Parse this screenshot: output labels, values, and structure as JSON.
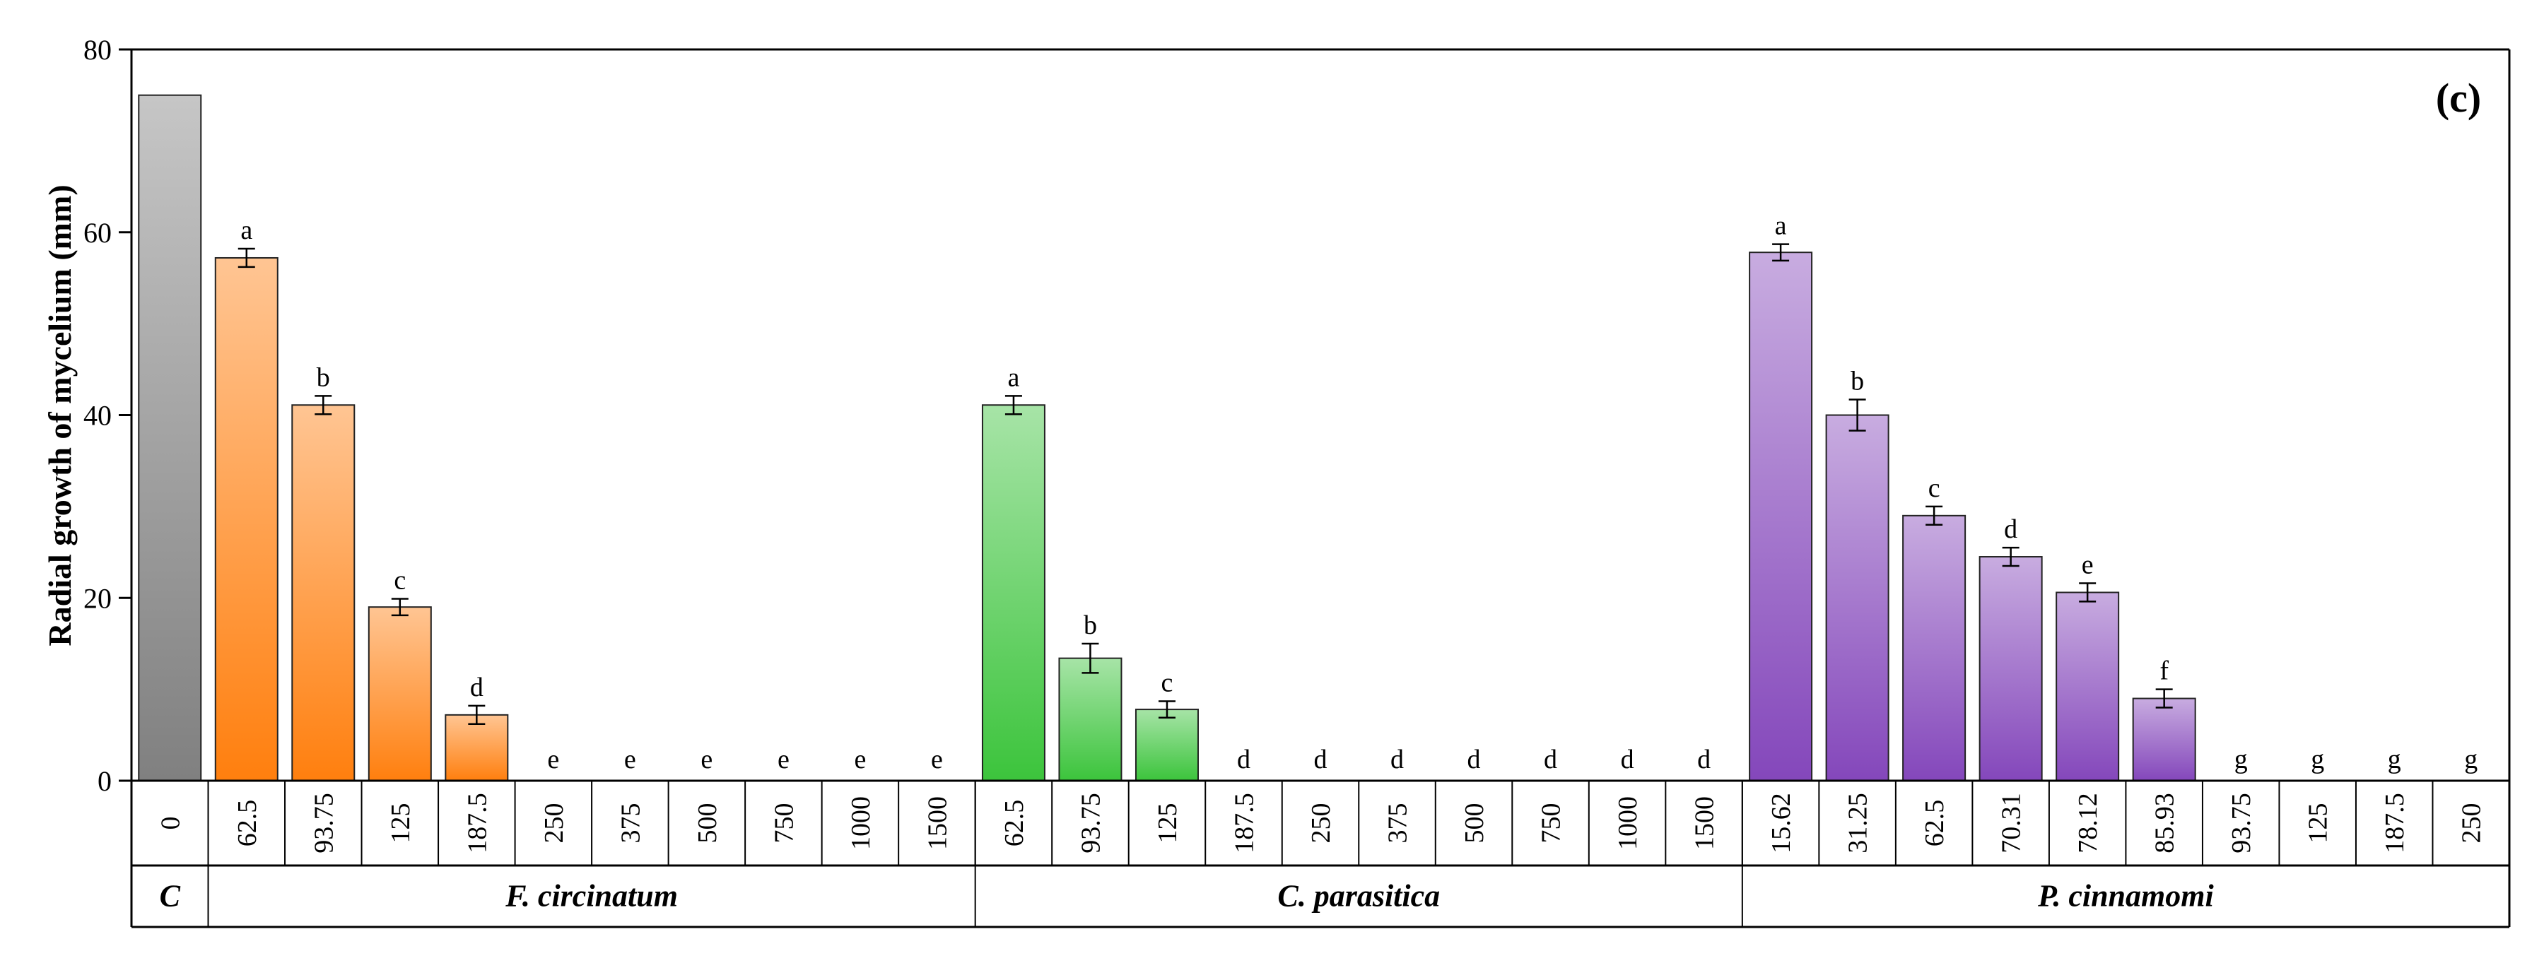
{
  "chart_data": {
    "type": "bar",
    "panel_label": "(c)",
    "ylabel": "Radial growth of mycelium (mm)",
    "ylim": [
      0,
      80
    ],
    "yticks": [
      0,
      20,
      40,
      60,
      80
    ],
    "grid": false,
    "groups": [
      {
        "name": "C",
        "color": "#808080",
        "categories": [
          "0"
        ],
        "values": [
          75
        ],
        "errors": [
          0
        ],
        "letters": [
          ""
        ]
      },
      {
        "name": "F. circinatum",
        "color": "#ff7f0e",
        "categories": [
          "62.5",
          "93.75",
          "125",
          "187.5",
          "250",
          "375",
          "500",
          "750",
          "1000",
          "1500"
        ],
        "values": [
          57.2,
          41.1,
          19.0,
          7.2,
          0,
          0,
          0,
          0,
          0,
          0
        ],
        "errors": [
          1.0,
          1.0,
          0.9,
          1.0,
          0,
          0,
          0,
          0,
          0,
          0
        ],
        "letters": [
          "a",
          "b",
          "c",
          "d",
          "e",
          "e",
          "e",
          "e",
          "e",
          "e"
        ]
      },
      {
        "name": "C. parasitica",
        "color": "#3cc43c",
        "categories": [
          "62.5",
          "93.75",
          "125",
          "187.5",
          "250",
          "375",
          "500",
          "750",
          "1000",
          "1500"
        ],
        "values": [
          41.1,
          13.4,
          7.8,
          0,
          0,
          0,
          0,
          0,
          0,
          0
        ],
        "errors": [
          1.0,
          1.6,
          0.9,
          0,
          0,
          0,
          0,
          0,
          0,
          0
        ],
        "letters": [
          "a",
          "b",
          "c",
          "d",
          "d",
          "d",
          "d",
          "d",
          "d",
          "d"
        ]
      },
      {
        "name": "P. cinnamomi",
        "color": "#8447bb",
        "categories": [
          "15.62",
          "31.25",
          "62.5",
          "70.31",
          "78.12",
          "85.93",
          "93.75",
          "125",
          "187.5",
          "250"
        ],
        "values": [
          57.8,
          40.0,
          29.0,
          24.5,
          20.6,
          9.0,
          0,
          0,
          0,
          0
        ],
        "errors": [
          0.9,
          1.7,
          1.0,
          1.0,
          1.0,
          1.0,
          0,
          0,
          0,
          0
        ],
        "letters": [
          "a",
          "b",
          "c",
          "d",
          "e",
          "f",
          "g",
          "g",
          "g",
          "g"
        ]
      }
    ]
  }
}
